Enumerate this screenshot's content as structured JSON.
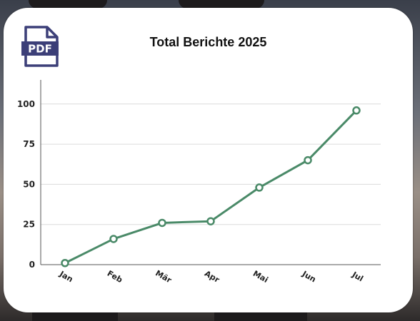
{
  "header": {
    "pdf_icon": "pdf-file-icon",
    "pdf_label": "PDF"
  },
  "chart_data": {
    "type": "line",
    "title": "Total Berichte 2025",
    "xlabel": "",
    "ylabel": "",
    "categories": [
      "Jan",
      "Feb",
      "Mär",
      "Apr",
      "Mai",
      "Jun",
      "Jul"
    ],
    "series": [
      {
        "values": [
          1,
          16,
          26,
          27,
          48,
          65,
          96
        ],
        "color": "#4a8a68"
      }
    ],
    "yticks": [
      0,
      25,
      50,
      75,
      100
    ],
    "ylim": [
      0,
      115
    ],
    "grid": true,
    "legend": "none"
  }
}
